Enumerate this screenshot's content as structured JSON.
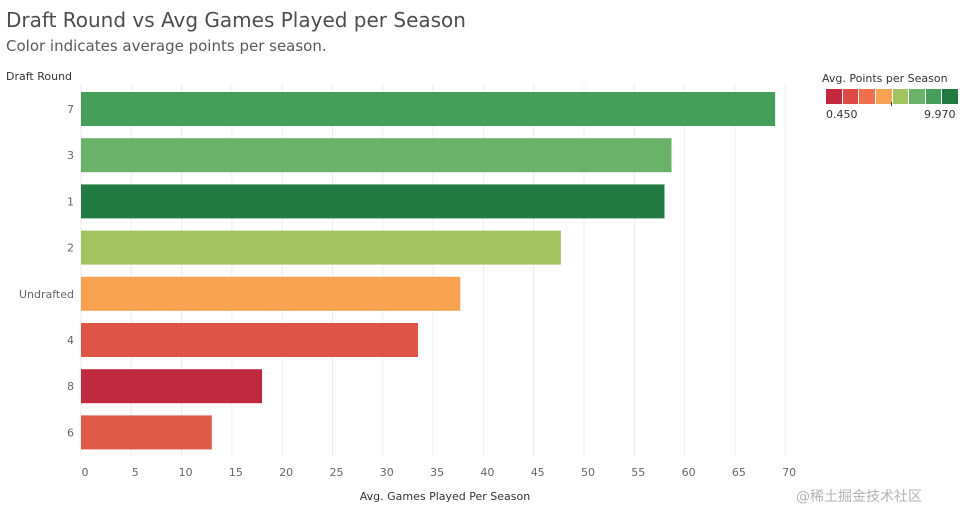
{
  "header": {
    "title": "Draft Round vs Avg Games Played per Season",
    "subtitle": "Color indicates average points per season."
  },
  "chart_data": {
    "type": "bar",
    "orientation": "horizontal",
    "y_header": "Draft Round",
    "xlabel": "Avg. Games Played Per Season",
    "xlim": [
      0,
      72
    ],
    "xticks": [
      0,
      5,
      10,
      15,
      20,
      25,
      30,
      35,
      40,
      45,
      50,
      55,
      60,
      65,
      70
    ],
    "grid": true,
    "categories": [
      "7",
      "3",
      "1",
      "2",
      "Undrafted",
      "4",
      "8",
      "6"
    ],
    "values": [
      69,
      58.7,
      58,
      47.7,
      37.7,
      33.5,
      18,
      13
    ],
    "colors": [
      "#459f5b",
      "#6ab26a",
      "#217a42",
      "#a3c260",
      "#f8a150",
      "#de5548",
      "#bf2a41",
      "#e05a4a"
    ]
  },
  "legend": {
    "title": "Avg. Points per Season",
    "min_label": "0.450",
    "max_label": "9.970",
    "swatches": [
      "#c4283e",
      "#dd4a45",
      "#ee6f4c",
      "#f7a252",
      "#a3c260",
      "#6ab26a",
      "#459f5b",
      "#217a42"
    ]
  },
  "watermark": "@稀土掘金技术社区"
}
